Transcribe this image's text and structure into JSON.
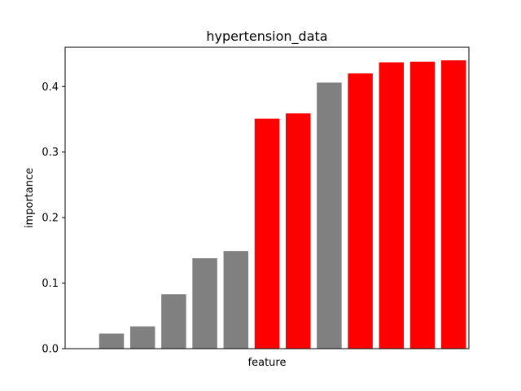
{
  "chart_data": {
    "type": "bar",
    "title": "hypertension_data",
    "xlabel": "feature",
    "ylabel": "importance",
    "ylim": [
      0,
      0.46
    ],
    "yticks": [
      0.0,
      0.1,
      0.2,
      0.3,
      0.4
    ],
    "ytick_labels": [
      "0.0",
      "0.1",
      "0.2",
      "0.3",
      "0.4"
    ],
    "values": [
      0.023,
      0.034,
      0.083,
      0.138,
      0.149,
      0.351,
      0.359,
      0.406,
      0.42,
      0.437,
      0.438,
      0.44
    ],
    "colors": [
      "#808080",
      "#808080",
      "#808080",
      "#808080",
      "#808080",
      "#ff0000",
      "#ff0000",
      "#808080",
      "#ff0000",
      "#ff0000",
      "#ff0000",
      "#ff0000"
    ],
    "grid": false,
    "legend": "none"
  }
}
